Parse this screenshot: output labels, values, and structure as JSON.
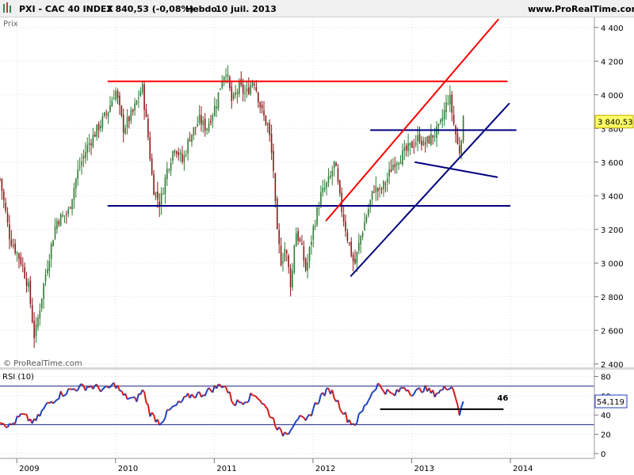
{
  "header": {
    "symbol": "PXI - CAC 40 INDEX",
    "last": "3 840,53 (-0,08%)",
    "period": "Hebdo",
    "date": "10 juil. 2013",
    "site": "www.ProRealTime.com"
  },
  "chart_data": [
    {
      "type": "candlestick",
      "panel": "price",
      "ylabel": "Prix",
      "watermark": "© ProRealTime.com",
      "ylim": [
        2380,
        4460
      ],
      "y_ticks": [
        "4 400",
        "4 200",
        "4 000",
        "3 800",
        "3 600",
        "3 400",
        "3 200",
        "3 000",
        "2 800",
        "2 600",
        "2 400"
      ],
      "y_tick_values": [
        4400,
        4200,
        4000,
        3800,
        3600,
        3400,
        3200,
        3000,
        2800,
        2600,
        2400
      ],
      "last_value_label": "3 840,53",
      "last_value": 3840.53,
      "x_ticks": [
        "2009",
        "2010",
        "2011",
        "2012",
        "2013",
        "2014"
      ],
      "x_tick_values": [
        2009,
        2010,
        2011,
        2012,
        2013,
        2014
      ],
      "x_range": [
        2008.83,
        2014.85
      ],
      "series_anchor_points": [
        [
          2008.83,
          3500
        ],
        [
          2008.93,
          3150
        ],
        [
          2009.05,
          3000
        ],
        [
          2009.12,
          2850
        ],
        [
          2009.18,
          2550
        ],
        [
          2009.28,
          2900
        ],
        [
          2009.4,
          3250
        ],
        [
          2009.52,
          3300
        ],
        [
          2009.62,
          3550
        ],
        [
          2009.72,
          3700
        ],
        [
          2009.82,
          3800
        ],
        [
          2009.92,
          3900
        ],
        [
          2010.0,
          4030
        ],
        [
          2010.08,
          3800
        ],
        [
          2010.18,
          3900
        ],
        [
          2010.27,
          4050
        ],
        [
          2010.33,
          3750
        ],
        [
          2010.38,
          3450
        ],
        [
          2010.45,
          3350
        ],
        [
          2010.52,
          3550
        ],
        [
          2010.6,
          3700
        ],
        [
          2010.68,
          3600
        ],
        [
          2010.75,
          3750
        ],
        [
          2010.85,
          3850
        ],
        [
          2010.92,
          3800
        ],
        [
          2011.02,
          3950
        ],
        [
          2011.08,
          4100
        ],
        [
          2011.12,
          4150
        ],
        [
          2011.18,
          3950
        ],
        [
          2011.25,
          4050
        ],
        [
          2011.32,
          4000
        ],
        [
          2011.4,
          4100
        ],
        [
          2011.48,
          3900
        ],
        [
          2011.55,
          3800
        ],
        [
          2011.6,
          3550
        ],
        [
          2011.63,
          3200
        ],
        [
          2011.68,
          3000
        ],
        [
          2011.72,
          3100
        ],
        [
          2011.78,
          2850
        ],
        [
          2011.82,
          3200
        ],
        [
          2011.88,
          3100
        ],
        [
          2011.93,
          2950
        ],
        [
          2012.0,
          3200
        ],
        [
          2012.08,
          3400
        ],
        [
          2012.17,
          3500
        ],
        [
          2012.22,
          3600
        ],
        [
          2012.28,
          3350
        ],
        [
          2012.35,
          3150
        ],
        [
          2012.42,
          2980
        ],
        [
          2012.48,
          3150
        ],
        [
          2012.55,
          3300
        ],
        [
          2012.62,
          3450
        ],
        [
          2012.68,
          3420
        ],
        [
          2012.75,
          3500
        ],
        [
          2012.82,
          3600
        ],
        [
          2012.92,
          3650
        ],
        [
          2013.0,
          3700
        ],
        [
          2013.08,
          3750
        ],
        [
          2013.12,
          3700
        ],
        [
          2013.2,
          3750
        ],
        [
          2013.28,
          3800
        ],
        [
          2013.33,
          3900
        ],
        [
          2013.38,
          4000
        ],
        [
          2013.42,
          3850
        ],
        [
          2013.48,
          3650
        ],
        [
          2013.52,
          3840
        ]
      ],
      "annotations": [
        {
          "type": "hline",
          "value": 4080,
          "label": "4080",
          "color": "#ff0000"
        },
        {
          "type": "hline",
          "value": 3790,
          "label": "3790",
          "color": "#000080"
        },
        {
          "type": "hline",
          "value": 3340,
          "label": "3340",
          "color": "#000080"
        },
        {
          "type": "trendline",
          "color": "#ff0000",
          "from": [
            2012.13,
            3250
          ],
          "to": [
            2013.88,
            4450
          ]
        },
        {
          "type": "trendline",
          "color": "#000080",
          "from": [
            2012.38,
            2920
          ],
          "to": [
            2013.99,
            3950
          ]
        },
        {
          "type": "trendline",
          "color": "#000080",
          "from": [
            2013.03,
            3600
          ],
          "to": [
            2013.87,
            3510
          ]
        }
      ]
    },
    {
      "type": "line",
      "panel": "indicator",
      "title": "RSI (10)",
      "ylim": [
        -5,
        87
      ],
      "y_ticks": [
        "80",
        "60",
        "40",
        "20",
        "0"
      ],
      "y_tick_values": [
        80,
        60,
        40,
        20,
        0
      ],
      "levels": [
        70,
        30
      ],
      "last_value_label": "54,119",
      "last_value": 54.119,
      "annotations": [
        {
          "type": "hline",
          "value": 46,
          "label": "46",
          "from_x": 2012.68,
          "to_x": 2013.93,
          "color": "#000000"
        }
      ],
      "series_anchor_points": [
        [
          2008.83,
          35
        ],
        [
          2008.93,
          28
        ],
        [
          2009.05,
          40
        ],
        [
          2009.18,
          32
        ],
        [
          2009.3,
          50
        ],
        [
          2009.45,
          62
        ],
        [
          2009.6,
          68
        ],
        [
          2009.75,
          70
        ],
        [
          2009.9,
          66
        ],
        [
          2010.0,
          72
        ],
        [
          2010.08,
          60
        ],
        [
          2010.2,
          55
        ],
        [
          2010.28,
          66
        ],
        [
          2010.35,
          42
        ],
        [
          2010.45,
          32
        ],
        [
          2010.55,
          45
        ],
        [
          2010.65,
          52
        ],
        [
          2010.75,
          60
        ],
        [
          2010.88,
          62
        ],
        [
          2011.0,
          68
        ],
        [
          2011.1,
          72
        ],
        [
          2011.2,
          52
        ],
        [
          2011.3,
          55
        ],
        [
          2011.42,
          62
        ],
        [
          2011.52,
          48
        ],
        [
          2011.6,
          35
        ],
        [
          2011.68,
          20
        ],
        [
          2011.76,
          24
        ],
        [
          2011.84,
          38
        ],
        [
          2011.93,
          32
        ],
        [
          2012.03,
          52
        ],
        [
          2012.1,
          62
        ],
        [
          2012.18,
          66
        ],
        [
          2012.26,
          52
        ],
        [
          2012.35,
          36
        ],
        [
          2012.42,
          30
        ],
        [
          2012.5,
          44
        ],
        [
          2012.58,
          60
        ],
        [
          2012.65,
          72
        ],
        [
          2012.72,
          66
        ],
        [
          2012.82,
          60
        ],
        [
          2012.92,
          70
        ],
        [
          2013.02,
          62
        ],
        [
          2013.12,
          68
        ],
        [
          2013.22,
          62
        ],
        [
          2013.32,
          66
        ],
        [
          2013.4,
          72
        ],
        [
          2013.46,
          55
        ],
        [
          2013.49,
          38
        ],
        [
          2013.52,
          54
        ]
      ]
    }
  ]
}
